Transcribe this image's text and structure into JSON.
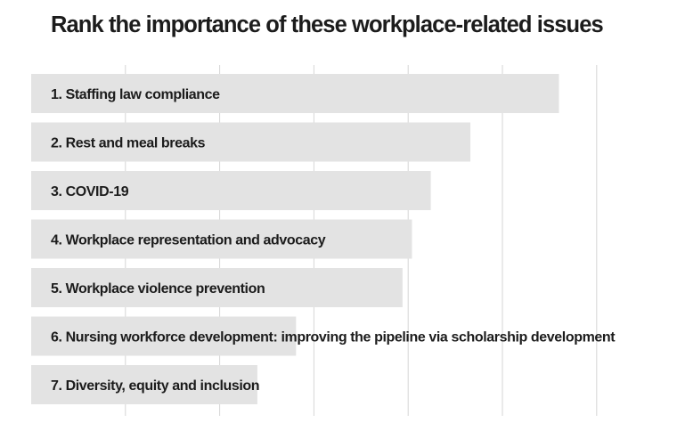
{
  "chart_data": {
    "type": "bar",
    "orientation": "horizontal",
    "title": "Rank the importance of these workplace-related issues",
    "categories": [
      "1. Staffing law compliance",
      "2. Rest and meal breaks",
      "3. COVID-19",
      "4. Workplace representation and advocacy",
      "5. Workplace violence prevention",
      "6. Nursing workforce development: improving the pipeline via scholarship development",
      "7. Diversity, equity and inclusion"
    ],
    "values": [
      5.6,
      4.66,
      4.24,
      4.04,
      3.94,
      2.81,
      2.4
    ],
    "xlim": [
      0,
      6
    ],
    "grid": true,
    "legend": "none",
    "colors": {
      "bar": "#e3e3e3",
      "grid": "#d6d6d6",
      "text": "#1c1c1c"
    }
  }
}
